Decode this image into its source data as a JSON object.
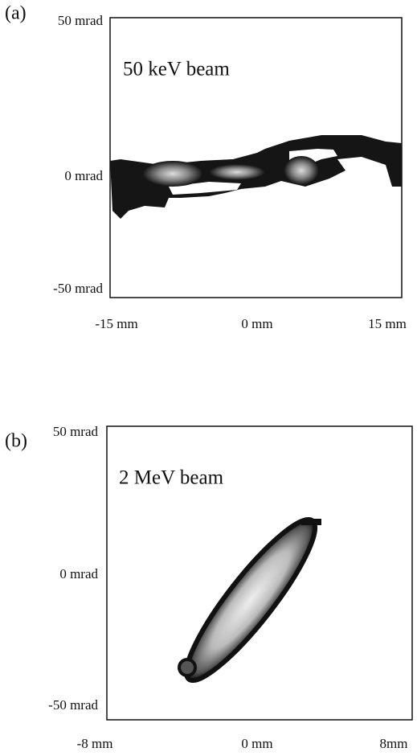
{
  "panels": [
    {
      "label": "(a)",
      "title": "50 keV beam",
      "yticks": [
        "50 mrad",
        "0 mrad",
        "-50 mrad"
      ],
      "xticks": [
        "-15 mm",
        "0 mm",
        "15 mm"
      ]
    },
    {
      "label": "(b)",
      "title": "2 MeV beam",
      "yticks": [
        "50 mrad",
        "0 mrad",
        "-50 mrad"
      ],
      "xticks": [
        "-8 mm",
        "0 mm",
        "8mm"
      ]
    }
  ]
}
